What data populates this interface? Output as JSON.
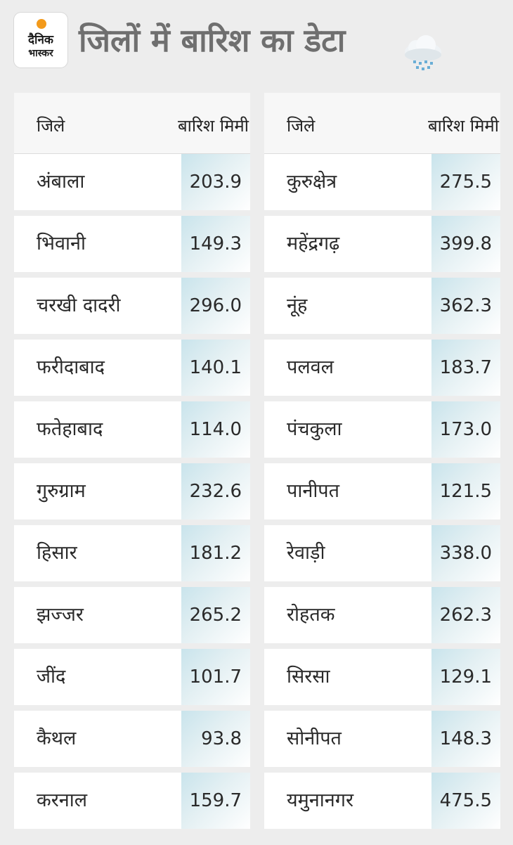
{
  "brand": {
    "line1": "दैनिक",
    "line2": "भास्कर",
    "sun_color": "#f39a1b"
  },
  "title": "जिलों में बारिश का डेटा",
  "icon": "cloud-rain-icon",
  "columns": {
    "district": "जिले",
    "rain": "बारिश मिमी"
  },
  "left_rows": [
    {
      "district": "अंबाला",
      "rain": "203.9"
    },
    {
      "district": "भिवानी",
      "rain": "149.3"
    },
    {
      "district": "चरखी दादरी",
      "rain": "296.0"
    },
    {
      "district": "फरीदाबाद",
      "rain": "140.1"
    },
    {
      "district": "फतेहाबाद",
      "rain": "114.0"
    },
    {
      "district": "गुरुग्राम",
      "rain": "232.6"
    },
    {
      "district": "हिसार",
      "rain": "181.2"
    },
    {
      "district": "झज्जर",
      "rain": "265.2"
    },
    {
      "district": "जींद",
      "rain": "101.7"
    },
    {
      "district": "कैथल",
      "rain": "93.8"
    },
    {
      "district": "करनाल",
      "rain": "159.7"
    }
  ],
  "right_rows": [
    {
      "district": "कुरुक्षेत्र",
      "rain": "275.5"
    },
    {
      "district": "महेंद्रगढ़",
      "rain": "399.8"
    },
    {
      "district": "नूंह",
      "rain": "362.3"
    },
    {
      "district": "पलवल",
      "rain": "183.7"
    },
    {
      "district": "पंचकुला",
      "rain": "173.0"
    },
    {
      "district": "पानीपत",
      "rain": "121.5"
    },
    {
      "district": "रेवाड़ी",
      "rain": "338.0"
    },
    {
      "district": "रोहतक",
      "rain": "262.3"
    },
    {
      "district": "सिरसा",
      "rain": "129.1"
    },
    {
      "district": "सोनीपत",
      "rain": "148.3"
    },
    {
      "district": "यमुनानगर",
      "rain": "475.5"
    }
  ]
}
